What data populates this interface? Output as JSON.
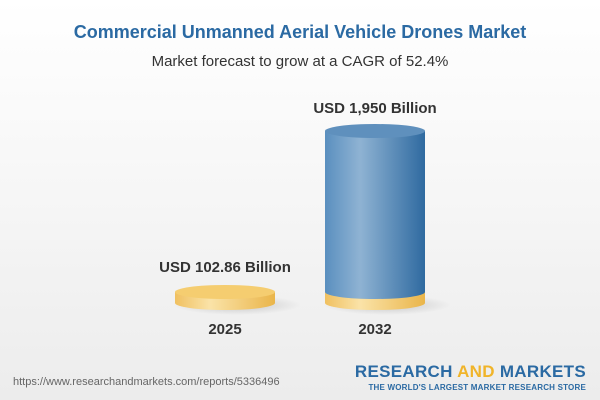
{
  "title": "Commercial Unmanned Aerial Vehicle Drones Market",
  "subtitle": "Market forecast to grow at a CAGR of 52.4%",
  "footer": {
    "url": "https://www.researchandmarkets.com/reports/5336496",
    "logo_part1": "RESEARCH ",
    "logo_part2": "AND",
    "logo_part3": " MARKETS",
    "tagline": "THE WORLD'S LARGEST MARKET RESEARCH STORE"
  },
  "colors": {
    "title": "#2b6aa3",
    "bar_2032": "#4f86b8",
    "bar_2025": "#f3c866"
  },
  "chart_data": {
    "type": "bar",
    "style": "3d-cylinder",
    "categories": [
      "2025",
      "2032"
    ],
    "values": [
      102.86,
      1950
    ],
    "unit": "USD Billion",
    "data_labels": [
      "USD 102.86 Billion",
      "USD 1,950 Billion"
    ],
    "title": "Commercial Unmanned Aerial Vehicle Drones Market",
    "subtitle": "Market forecast to grow at a CAGR of 52.4%"
  }
}
